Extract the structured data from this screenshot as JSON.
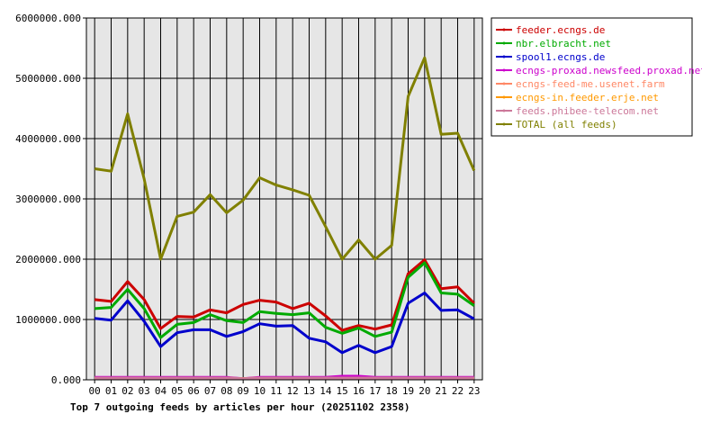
{
  "chart_data": {
    "type": "line",
    "title": "Top 7 outgoing feeds by articles per hour (20251102 2358)",
    "categories": [
      "00",
      "01",
      "02",
      "03",
      "04",
      "05",
      "06",
      "07",
      "08",
      "09",
      "10",
      "11",
      "12",
      "13",
      "14",
      "15",
      "16",
      "17",
      "18",
      "19",
      "20",
      "21",
      "22",
      "23"
    ],
    "ylim": [
      0,
      6000000
    ],
    "yticks": [
      "0.000",
      "1000000.000",
      "2000000.000",
      "3000000.000",
      "4000000.000",
      "5000000.000",
      "6000000.000"
    ],
    "grid": true,
    "legend_position": "top-right",
    "series": [
      {
        "name": "feeder.ecngs.de",
        "color": "#cc0000",
        "values": [
          1330000,
          1300000,
          1630000,
          1330000,
          850000,
          1050000,
          1040000,
          1160000,
          1110000,
          1250000,
          1320000,
          1290000,
          1180000,
          1270000,
          1060000,
          820000,
          900000,
          840000,
          910000,
          1760000,
          1990000,
          1510000,
          1540000,
          1270000
        ]
      },
      {
        "name": "nbr.elbracht.net",
        "color": "#00aa00",
        "values": [
          1180000,
          1200000,
          1500000,
          1180000,
          700000,
          920000,
          950000,
          1080000,
          980000,
          950000,
          1130000,
          1100000,
          1080000,
          1110000,
          870000,
          770000,
          860000,
          720000,
          790000,
          1700000,
          1940000,
          1440000,
          1420000,
          1230000
        ]
      },
      {
        "name": "spool1.ecngs.de",
        "color": "#0000cc",
        "values": [
          1020000,
          990000,
          1310000,
          970000,
          550000,
          780000,
          830000,
          830000,
          720000,
          800000,
          930000,
          890000,
          900000,
          690000,
          630000,
          450000,
          570000,
          450000,
          550000,
          1270000,
          1440000,
          1150000,
          1160000,
          1010000
        ]
      },
      {
        "name": "ecngs-proxad.newsfeed.proxad.net",
        "color": "#cc00cc",
        "values": [
          40000,
          40000,
          40000,
          40000,
          40000,
          40000,
          40000,
          40000,
          40000,
          20000,
          40000,
          40000,
          40000,
          40000,
          40000,
          60000,
          60000,
          40000,
          40000,
          40000,
          40000,
          40000,
          40000,
          40000
        ]
      },
      {
        "name": "ecngs-feed-me.usenet.farm",
        "color": "#ff8866",
        "values": [
          30000,
          30000,
          30000,
          30000,
          30000,
          30000,
          30000,
          30000,
          30000,
          20000,
          30000,
          30000,
          30000,
          30000,
          30000,
          30000,
          30000,
          30000,
          30000,
          30000,
          30000,
          30000,
          30000,
          30000
        ]
      },
      {
        "name": "ecngs-in.feeder.erje.net",
        "color": "#ff9900",
        "values": [
          20000,
          20000,
          20000,
          20000,
          20000,
          20000,
          20000,
          20000,
          20000,
          20000,
          20000,
          20000,
          20000,
          20000,
          20000,
          20000,
          20000,
          20000,
          20000,
          20000,
          20000,
          20000,
          20000,
          20000
        ]
      },
      {
        "name": "feeds.phibee-telecom.net",
        "color": "#cc7799",
        "values": [
          30000,
          30000,
          30000,
          30000,
          30000,
          30000,
          30000,
          30000,
          30000,
          20000,
          30000,
          30000,
          30000,
          30000,
          30000,
          30000,
          30000,
          30000,
          30000,
          30000,
          30000,
          30000,
          30000,
          30000
        ]
      },
      {
        "name": "TOTAL (all feeds)",
        "color": "#808000",
        "values": [
          3500000,
          3460000,
          4410000,
          3330000,
          2000000,
          2710000,
          2780000,
          3070000,
          2770000,
          2980000,
          3350000,
          3230000,
          3150000,
          3060000,
          2540000,
          2000000,
          2320000,
          2000000,
          2230000,
          4700000,
          5340000,
          4070000,
          4090000,
          3470000
        ]
      }
    ]
  }
}
